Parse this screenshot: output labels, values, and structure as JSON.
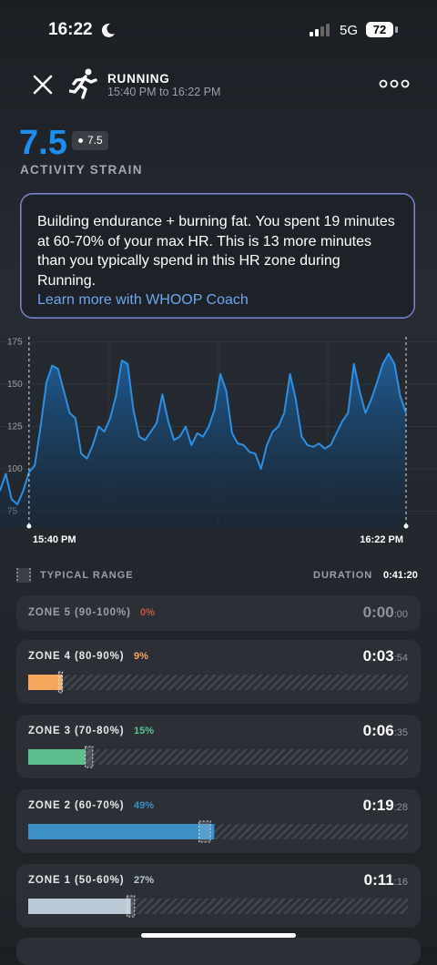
{
  "status_bar": {
    "time": "16:22",
    "network": "5G",
    "battery": "72"
  },
  "header": {
    "title": "RUNNING",
    "subtitle": "15:40 PM to 16:22 PM"
  },
  "strain": {
    "value": "7.5",
    "badge": "7.5",
    "label": "ACTIVITY STRAIN"
  },
  "coach": {
    "message": "Building endurance + burning fat. You spent 19 minutes at 60-70% of your max HR. This is 13 more minutes than you typically spend in this HR zone during Running.",
    "link": "Learn more with WHOOP Coach"
  },
  "chart_data": {
    "type": "line",
    "categories": [
      null,
      null,
      null,
      null,
      null,
      "15:40 PM",
      null,
      null,
      null,
      null,
      null,
      null,
      null,
      null,
      null,
      null,
      null,
      null,
      null,
      null,
      null,
      null,
      null,
      null,
      null,
      null,
      null,
      null,
      null,
      null,
      null,
      null,
      null,
      null,
      null,
      null,
      null,
      null,
      null,
      null,
      null,
      null,
      null,
      null,
      null,
      null,
      null,
      null,
      null,
      null,
      null,
      null,
      null,
      null,
      null,
      null,
      null,
      null,
      null,
      null,
      null,
      null,
      null,
      null,
      null,
      null,
      null,
      null,
      null,
      null,
      "16:22 PM"
    ],
    "series": [
      {
        "color": "#2d8fe3",
        "values": [
          87,
          97,
          82,
          79,
          87,
          98,
          102,
          125,
          151,
          161,
          159,
          146,
          133,
          130,
          109,
          106,
          114,
          125,
          122,
          130,
          143,
          164,
          162,
          135,
          119,
          117,
          122,
          127,
          144,
          128,
          117,
          119,
          125,
          114,
          121,
          119,
          125,
          135,
          156,
          146,
          121,
          115,
          114,
          110,
          109,
          100,
          114,
          122,
          125,
          133,
          156,
          141,
          119,
          114,
          113,
          115,
          112,
          114,
          121,
          128,
          133,
          162,
          146,
          133,
          141,
          151,
          162,
          168,
          162,
          143,
          133
        ]
      }
    ],
    "ylim": [
      65,
      178
    ],
    "yticks": [
      75,
      100,
      125,
      150,
      175
    ],
    "grid": true
  },
  "legend": {
    "typical_range": "TYPICAL RANGE",
    "duration_label": "DURATION",
    "duration": "0:41:20"
  },
  "zones": [
    {
      "name": "ZONE 5 (90-100%)",
      "percent": 0,
      "percent_label": "0%",
      "time": "0:00",
      "seconds": ":00",
      "color": "#c9573f"
    },
    {
      "name": "ZONE 4 (80-90%)",
      "percent": 9,
      "percent_label": "9%",
      "time": "0:03",
      "seconds": ":54",
      "color": "#f6a65e",
      "typical_range": [
        8,
        9
      ]
    },
    {
      "name": "ZONE 3 (70-80%)",
      "percent": 15,
      "percent_label": "15%",
      "time": "0:06",
      "seconds": ":35",
      "color": "#5cbf8e",
      "typical_range": [
        15,
        17
      ]
    },
    {
      "name": "ZONE 2 (60-70%)",
      "percent": 49,
      "percent_label": "49%",
      "time": "0:19",
      "seconds": ":28",
      "color": "#3d8fc6",
      "typical_range": [
        45,
        48
      ]
    },
    {
      "name": "ZONE 1 (50-60%)",
      "percent": 27,
      "percent_label": "27%",
      "time": "0:11",
      "seconds": ":16",
      "color": "#b9c9d5",
      "typical_range": [
        26,
        28
      ]
    }
  ]
}
